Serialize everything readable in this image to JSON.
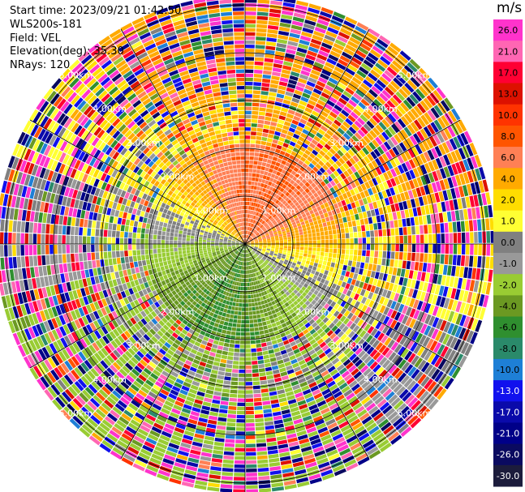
{
  "info": {
    "start_time": "Start time: 2023/09/21 01:42:50",
    "device": "WLS200s-181",
    "field": "Field: VEL",
    "elevation": "Elevation(deg): 35.30",
    "nrays": "NRays: 120"
  },
  "range_labels": [
    "1.00km",
    "2.00km",
    "3.00km",
    "4.00km",
    "5.00km"
  ],
  "colorbar": {
    "unit": "m/s",
    "ticks": [
      "26.0",
      "21.0",
      "17.0",
      "13.0",
      "10.0",
      "8.0",
      "6.0",
      "4.0",
      "2.0",
      "1.0",
      "0.0",
      "-1.0",
      "-2.0",
      "-4.0",
      "-6.0",
      "-8.0",
      "-10.0",
      "-13.0",
      "-17.0",
      "-21.0",
      "-26.0",
      "-30.0"
    ],
    "colors": [
      "#ff33cc",
      "#ff66b3",
      "#ff0033",
      "#dd1100",
      "#ff3300",
      "#ff5500",
      "#ff8055",
      "#ffaa00",
      "#ffdd00",
      "#ffff33",
      "#808080",
      "#999999",
      "#99cc33",
      "#6b9922",
      "#2f8f2f",
      "#2a8a6a",
      "#1e7fd6",
      "#1111ee",
      "#0a0aaa",
      "#000088",
      "#0a0a60",
      "#1c1c3c"
    ]
  }
}
